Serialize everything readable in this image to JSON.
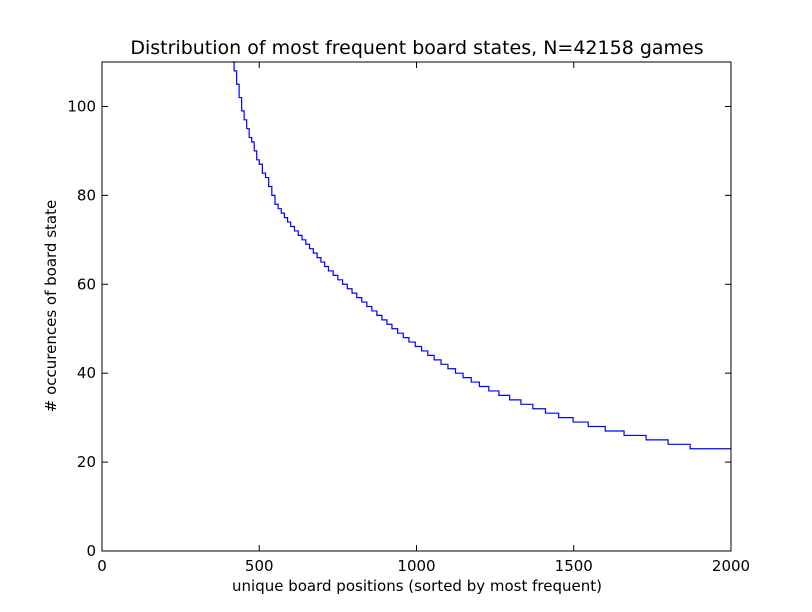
{
  "chart_data": {
    "type": "line",
    "title": "Distribution of most frequent board states, N=42158 games",
    "xlabel": "unique board positions (sorted by most frequent)",
    "ylabel": "# occurences of board state",
    "xlim": [
      0,
      2000
    ],
    "ylim": [
      0,
      110
    ],
    "xticks": [
      0,
      500,
      1000,
      1500,
      2000
    ],
    "yticks": [
      0,
      20,
      40,
      60,
      80,
      100
    ],
    "grid": false,
    "line_color": "#0000ff",
    "series": [
      {
        "x": [
          414,
          420,
          428,
          436,
          444,
          452,
          460,
          468,
          476,
          484,
          492,
          500,
          510,
          520,
          530,
          540,
          550,
          560,
          570,
          580,
          590,
          600,
          612,
          624,
          636,
          648,
          660,
          672,
          684,
          696,
          708,
          720,
          735,
          750,
          765,
          780,
          795,
          810,
          826,
          842,
          858,
          874,
          890,
          906,
          922,
          940,
          958,
          976,
          996,
          1016,
          1036,
          1056,
          1078,
          1100,
          1124,
          1148,
          1174,
          1200,
          1230,
          1262,
          1296,
          1332,
          1370,
          1410,
          1452,
          1498,
          1546,
          1600,
          1660,
          1730,
          1800,
          1870,
          1950,
          2000
        ],
        "y": [
          110,
          108,
          105,
          102,
          99,
          97,
          95,
          93,
          92,
          90,
          88,
          87,
          85,
          84,
          82,
          80,
          78,
          77,
          76,
          75,
          74,
          73,
          72,
          71,
          70,
          69,
          68,
          67,
          66,
          65,
          64,
          63,
          62,
          61,
          60,
          59,
          58,
          57,
          56,
          55,
          54,
          53,
          52,
          51,
          50,
          49,
          48,
          47,
          46,
          45,
          44,
          43,
          42,
          41,
          40,
          39,
          38,
          37,
          36,
          35,
          34,
          33,
          32,
          31,
          30,
          29,
          28,
          27,
          26,
          25,
          24,
          23,
          23,
          23
        ]
      }
    ]
  }
}
